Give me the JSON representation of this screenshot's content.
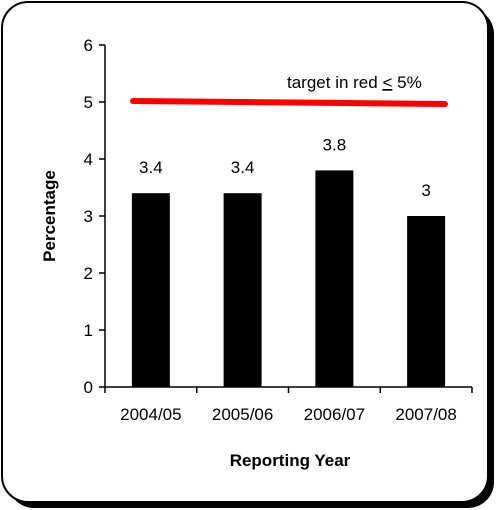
{
  "chart_data": {
    "type": "bar",
    "categories": [
      "2004/05",
      "2005/06",
      "2006/07",
      "2007/08"
    ],
    "values": [
      3.4,
      3.4,
      3.8,
      3
    ],
    "value_labels": [
      "3.4",
      "3.4",
      "3.8",
      "3"
    ],
    "xlabel": "Reporting Year",
    "ylabel": "Percentage",
    "ylim": [
      0,
      6
    ],
    "yticks": [
      "0",
      "1",
      "2",
      "3",
      "4",
      "5",
      "6"
    ],
    "grid": false,
    "bar_color": "#000000",
    "target": {
      "value": 5,
      "color": "#ff0000",
      "label_prefix": "target in red ",
      "label_symbol": "<",
      "label_suffix": " 5%"
    }
  }
}
